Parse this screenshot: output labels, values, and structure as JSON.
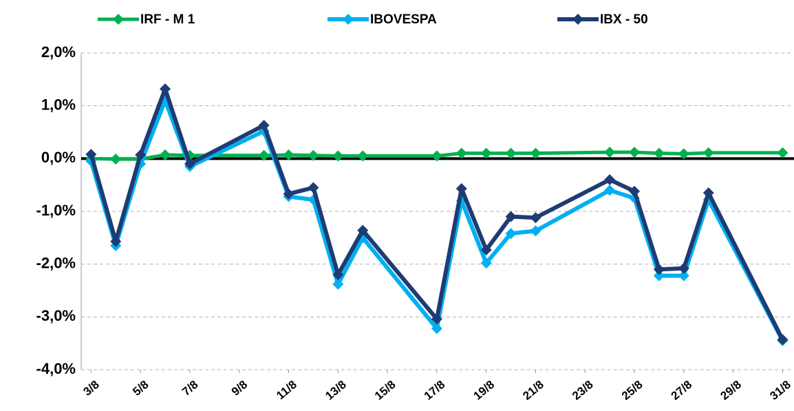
{
  "chart_data": {
    "type": "line",
    "x": [
      3,
      4,
      5,
      6,
      7,
      10,
      11,
      12,
      13,
      14,
      17,
      18,
      19,
      20,
      21,
      24,
      25,
      26,
      27,
      28,
      31
    ],
    "series": [
      {
        "name": "IRF - M 1",
        "color": "#00b050",
        "values": [
          0.0,
          -0.01,
          -0.01,
          0.07,
          0.06,
          0.06,
          0.07,
          0.06,
          0.05,
          0.05,
          0.05,
          0.1,
          0.1,
          0.1,
          0.1,
          0.12,
          0.12,
          0.1,
          0.09,
          0.11,
          0.11
        ]
      },
      {
        "name": "IBOVESPA",
        "color": "#00b0f0",
        "values": [
          -0.05,
          -1.65,
          -0.1,
          1.1,
          -0.15,
          0.52,
          -0.72,
          -0.78,
          -2.38,
          -1.5,
          -3.22,
          -0.8,
          -1.98,
          -1.42,
          -1.37,
          -0.6,
          -0.75,
          -2.22,
          -2.22,
          -0.78,
          -3.45
        ]
      },
      {
        "name": "IBX - 50",
        "color": "#1f3b73",
        "values": [
          0.08,
          -1.57,
          0.07,
          1.32,
          -0.1,
          0.63,
          -0.67,
          -0.55,
          -2.2,
          -1.36,
          -3.04,
          -0.57,
          -1.73,
          -1.1,
          -1.12,
          -0.4,
          -0.62,
          -2.1,
          -2.08,
          -0.65,
          -3.43
        ]
      }
    ],
    "xlim": [
      2.6,
      31.35
    ],
    "xticks": [
      {
        "value": 3,
        "label": "3/8"
      },
      {
        "value": 5,
        "label": "5/8"
      },
      {
        "value": 7,
        "label": "7/8"
      },
      {
        "value": 9,
        "label": "9/8"
      },
      {
        "value": 11,
        "label": "11/8"
      },
      {
        "value": 13,
        "label": "13/8"
      },
      {
        "value": 15,
        "label": "15/8"
      },
      {
        "value": 17,
        "label": "17/8"
      },
      {
        "value": 19,
        "label": "19/8"
      },
      {
        "value": 21,
        "label": "21/8"
      },
      {
        "value": 23,
        "label": "23/8"
      },
      {
        "value": 25,
        "label": "25/8"
      },
      {
        "value": 27,
        "label": "27/8"
      },
      {
        "value": 29,
        "label": "29/8"
      },
      {
        "value": 31,
        "label": "31/8"
      }
    ],
    "ylim": [
      -4,
      2
    ],
    "yticks": [
      {
        "value": 2,
        "label": "2,0%"
      },
      {
        "value": 1,
        "label": "1,0%"
      },
      {
        "value": 0,
        "label": "0,0%"
      },
      {
        "value": -1,
        "label": "-1,0%"
      },
      {
        "value": -2,
        "label": "-2,0%"
      },
      {
        "value": -3,
        "label": "-3,0%"
      },
      {
        "value": -4,
        "label": "-4,0%"
      }
    ],
    "grid": true,
    "legend": "top"
  }
}
